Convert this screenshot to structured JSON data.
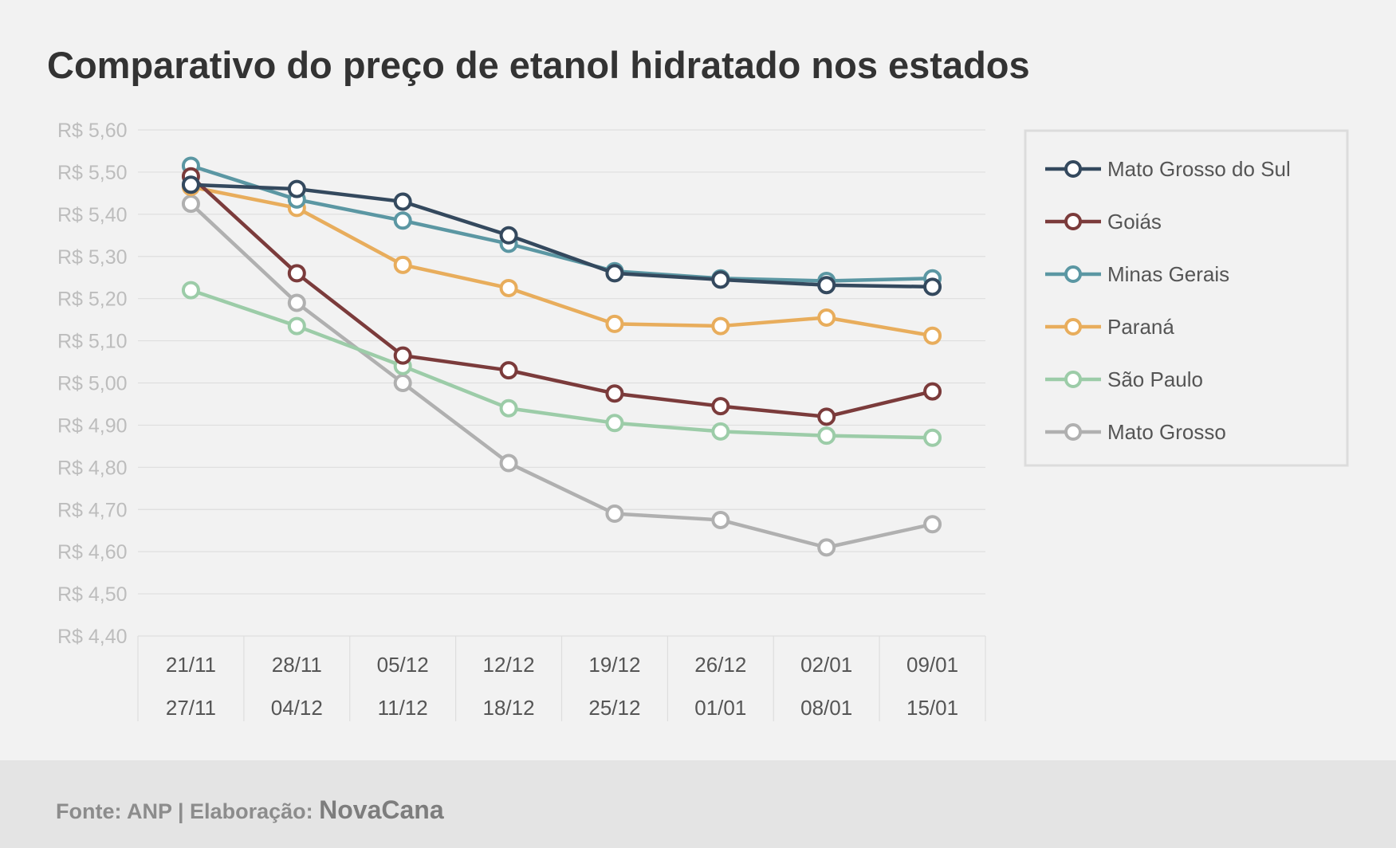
{
  "chart_data": {
    "type": "line",
    "title": "Comparativo do preço de etanol hidratado nos estados",
    "categories": [
      {
        "top": "21/11",
        "bottom": "27/11"
      },
      {
        "top": "28/11",
        "bottom": "04/12"
      },
      {
        "top": "05/12",
        "bottom": "11/12"
      },
      {
        "top": "12/12",
        "bottom": "18/12"
      },
      {
        "top": "19/12",
        "bottom": "25/12"
      },
      {
        "top": "26/12",
        "bottom": "01/01"
      },
      {
        "top": "02/01",
        "bottom": "08/01"
      },
      {
        "top": "09/01",
        "bottom": "15/01"
      }
    ],
    "ylim": [
      4.4,
      5.6
    ],
    "y_ticks": [
      "R$ 5,60",
      "R$ 5,50",
      "R$ 5,40",
      "R$ 5,30",
      "R$ 5,20",
      "R$ 5,10",
      "R$ 5,00",
      "R$ 4,90",
      "R$ 4,80",
      "R$ 4,70",
      "R$ 4,60",
      "R$ 4,50",
      "R$ 4,40"
    ],
    "grid": true,
    "legend_position": "right",
    "series": [
      {
        "name": "Mato Grosso do Sul",
        "color": "#34495e",
        "values": [
          5.47,
          5.46,
          5.43,
          5.35,
          5.26,
          5.245,
          5.232,
          5.228
        ]
      },
      {
        "name": "Goiás",
        "color": "#7b3b3b",
        "values": [
          5.49,
          5.26,
          5.065,
          5.03,
          4.975,
          4.945,
          4.92,
          4.98
        ]
      },
      {
        "name": "Minas Gerais",
        "color": "#5b97a3",
        "values": [
          5.515,
          5.435,
          5.385,
          5.33,
          5.265,
          5.248,
          5.242,
          5.248
        ]
      },
      {
        "name": "Paraná",
        "color": "#e8ad5c",
        "values": [
          5.465,
          5.415,
          5.28,
          5.225,
          5.14,
          5.135,
          5.155,
          5.112
        ]
      },
      {
        "name": "São Paulo",
        "color": "#9ccca8",
        "values": [
          5.22,
          5.135,
          5.04,
          4.94,
          4.905,
          4.885,
          4.875,
          4.87
        ]
      },
      {
        "name": "Mato Grosso",
        "color": "#b0b0b0",
        "values": [
          5.425,
          5.19,
          5.0,
          4.81,
          4.69,
          4.675,
          4.61,
          4.665
        ]
      }
    ]
  },
  "footer": {
    "source": "Fonte: ANP | Elaboração: ",
    "brand": "NovaCana"
  }
}
